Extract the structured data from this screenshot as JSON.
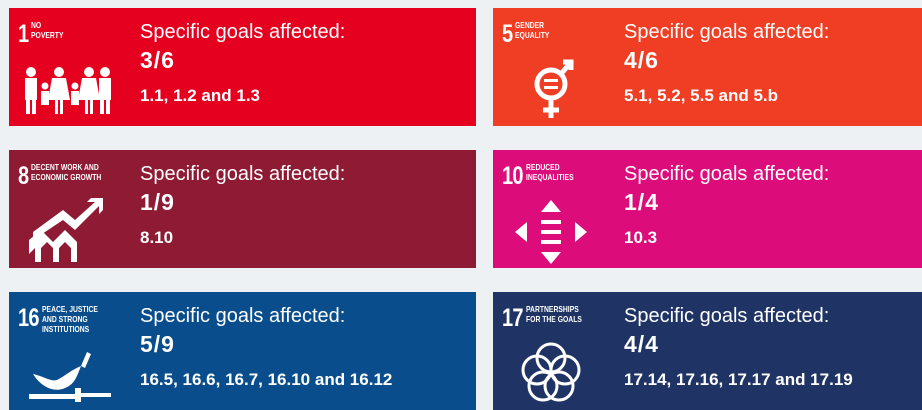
{
  "cards": [
    {
      "number": "1",
      "label": [
        "NO",
        "POVERTY"
      ],
      "heading": "Specific goals affected:",
      "fraction": "3/6",
      "goals": "1.1, 1.2 and 1.3"
    },
    {
      "number": "5",
      "label": [
        "GENDER",
        "EQUALITY"
      ],
      "heading": "Specific goals affected:",
      "fraction": "4/6",
      "goals": "5.1, 5.2, 5.5 and 5.b"
    },
    {
      "number": "8",
      "label": [
        "DECENT WORK AND",
        "ECONOMIC GROWTH"
      ],
      "heading": "Specific goals affected:",
      "fraction": "1/9",
      "goals": "8.10"
    },
    {
      "number": "10",
      "label": [
        "REDUCED",
        "INEQUALITIES"
      ],
      "heading": "Specific goals affected:",
      "fraction": "1/4",
      "goals": "10.3"
    },
    {
      "number": "16",
      "label": [
        "PEACE, JUSTICE",
        "AND STRONG",
        "INSTITUTIONS"
      ],
      "heading": "Specific goals affected:",
      "fraction": "5/9",
      "goals": "16.5, 16.6, 16.7, 16.10 and 16.12"
    },
    {
      "number": "17",
      "label": [
        "PARTNERSHIPS",
        "FOR THE GOALS"
      ],
      "heading": "Specific goals affected:",
      "fraction": "4/4",
      "goals": "17.14, 17.16, 17.17 and 17.19"
    }
  ]
}
